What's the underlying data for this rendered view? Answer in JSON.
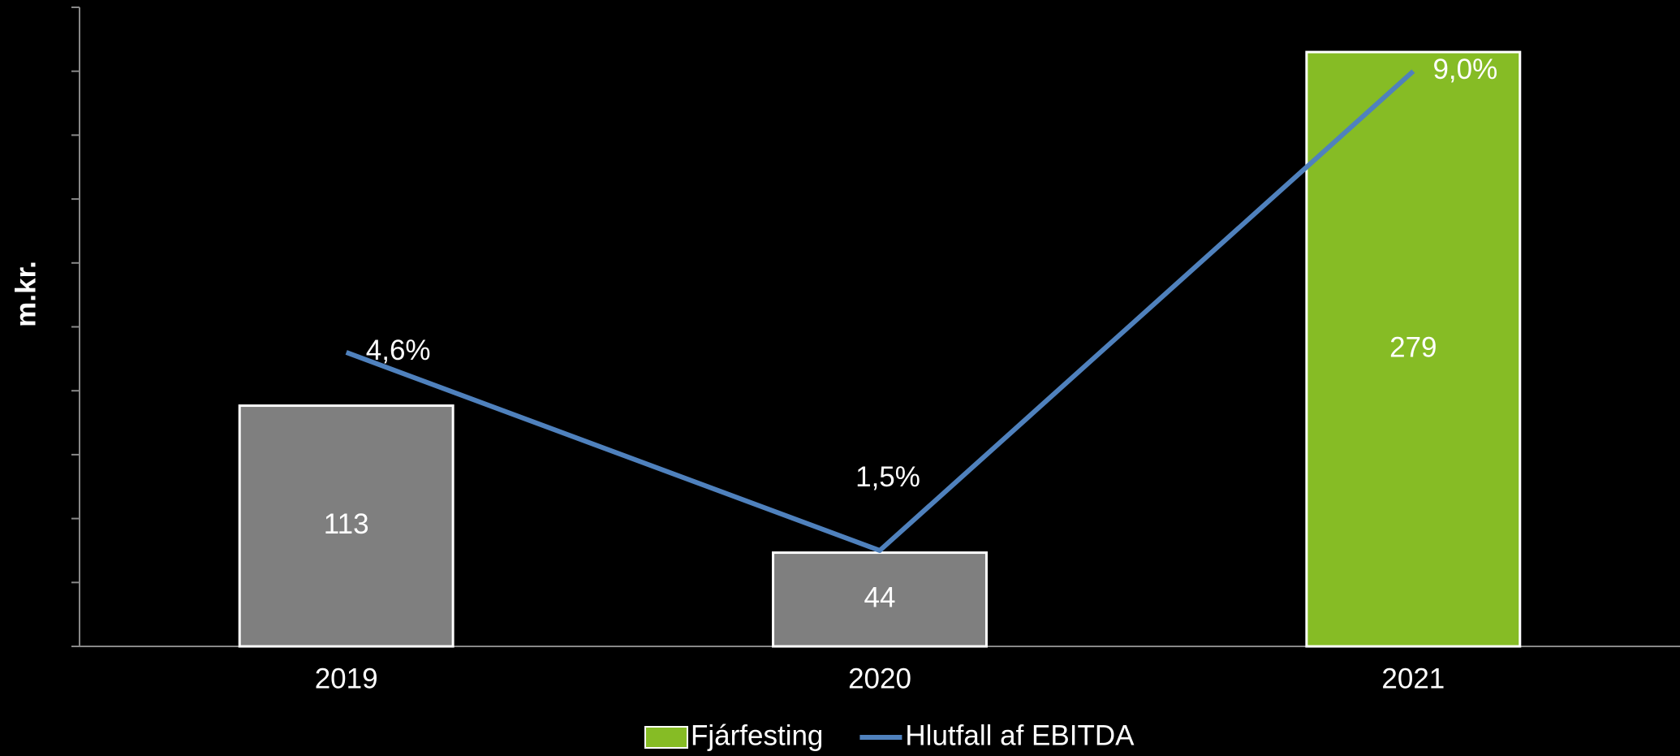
{
  "chart_data": {
    "type": "bar_line",
    "y_label": "m.kr.",
    "categories": [
      "2019",
      "2020",
      "2021"
    ],
    "ylim": [
      0,
      300
    ],
    "yticks": [
      0,
      30,
      60,
      90,
      120,
      150,
      180,
      210,
      240,
      270,
      300
    ],
    "y2lim": [
      0,
      10
    ],
    "legend": "bottom",
    "series": [
      {
        "name": "Fjárfesting",
        "type": "bar",
        "color": "#86bc25",
        "point_colors": [
          "#7f7f7f",
          "#7f7f7f",
          "#86bc25"
        ],
        "values": [
          113,
          44,
          279
        ]
      },
      {
        "name": "Hlutfall af EBITDA",
        "type": "line",
        "axis": "y2",
        "color": "#4f81bd",
        "values": [
          4.6,
          1.5,
          9.0
        ],
        "value_labels": [
          "4,6%",
          "1,5%",
          "9,0%"
        ]
      }
    ]
  }
}
